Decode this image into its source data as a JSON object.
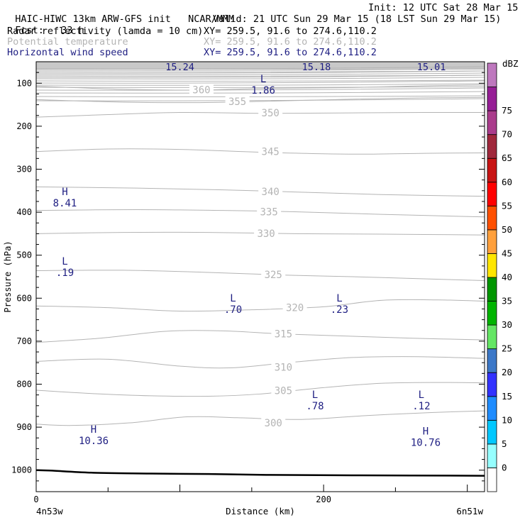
{
  "header": {
    "model": "HAIC-HIWC 13km ARW-GFS init",
    "org": "NCAR/MMM",
    "init": "Init: 12 UTC Sat 28 Mar 15",
    "fcst_label": "Fcst:",
    "fcst_value": "33 h",
    "valid": "Valid: 21 UTC Sun 29 Mar 15 (18 LST Sun 29 Mar 15)",
    "fields": [
      {
        "name": "Radar reflectivity (lamda = 10 cm)",
        "xy": "XY= 259.5, 91.6 to 274.6,110.2",
        "color": "#000000"
      },
      {
        "name": "Potential temperature",
        "xy": "XY= 259.5, 91.6 to 274.6,110.2",
        "color": "#b4b4b4"
      },
      {
        "name": "Horizontal wind speed",
        "xy": "XY= 259.5, 91.6 to 274.6,110.2",
        "color": "#1e1e82"
      }
    ]
  },
  "chart_data": {
    "type": "line",
    "title": "",
    "xlabel": "Distance (km)",
    "ylabel": "Pressure (hPa)",
    "x_tick_labels": [
      "0",
      "200"
    ],
    "x_end_labels": [
      "4n53w",
      "6n51w"
    ],
    "xlim": [
      0,
      312
    ],
    "y_tick_labels": [
      "100",
      "200",
      "300",
      "400",
      "500",
      "600",
      "700",
      "800",
      "900",
      "1000"
    ],
    "y_tick_values": [
      100,
      200,
      300,
      400,
      500,
      600,
      700,
      800,
      900,
      1000
    ],
    "ylim": [
      50,
      1050
    ],
    "theta_contours": [
      {
        "label": "300",
        "label_at": [
          165,
          890
        ],
        "points": [
          [
            0,
            893
          ],
          [
            25,
            896
          ],
          [
            65,
            890
          ],
          [
            105,
            876
          ],
          [
            140,
            878
          ],
          [
            185,
            882
          ],
          [
            230,
            873
          ],
          [
            275,
            866
          ],
          [
            312,
            862
          ]
        ]
      },
      {
        "label": "305",
        "label_at": [
          172,
          815
        ],
        "points": [
          [
            0,
            814
          ],
          [
            40,
            822
          ],
          [
            80,
            827
          ],
          [
            120,
            828
          ],
          [
            155,
            823
          ],
          [
            200,
            808
          ],
          [
            240,
            798
          ],
          [
            280,
            796
          ],
          [
            312,
            797
          ]
        ]
      },
      {
        "label": "310",
        "label_at": [
          172,
          760
        ],
        "points": [
          [
            0,
            747
          ],
          [
            50,
            742
          ],
          [
            100,
            758
          ],
          [
            135,
            762
          ],
          [
            175,
            750
          ],
          [
            220,
            738
          ],
          [
            265,
            736
          ],
          [
            312,
            740
          ]
        ]
      },
      {
        "label": "315",
        "label_at": [
          172,
          683
        ],
        "points": [
          [
            0,
            703
          ],
          [
            45,
            693
          ],
          [
            90,
            677
          ],
          [
            130,
            676
          ],
          [
            170,
            683
          ],
          [
            215,
            688
          ],
          [
            260,
            693
          ],
          [
            312,
            697
          ]
        ]
      },
      {
        "label": "320",
        "label_at": [
          180,
          622
        ],
        "points": [
          [
            0,
            618
          ],
          [
            50,
            622
          ],
          [
            100,
            630
          ],
          [
            150,
            627
          ],
          [
            200,
            620
          ],
          [
            240,
            605
          ],
          [
            280,
            604
          ],
          [
            312,
            607
          ]
        ]
      },
      {
        "label": "325",
        "label_at": [
          165,
          545
        ],
        "points": [
          [
            0,
            536
          ],
          [
            60,
            535
          ],
          [
            120,
            540
          ],
          [
            170,
            546
          ],
          [
            220,
            550
          ],
          [
            270,
            555
          ],
          [
            312,
            559
          ]
        ]
      },
      {
        "label": "330",
        "label_at": [
          160,
          449
        ],
        "points": [
          [
            0,
            450
          ],
          [
            60,
            447
          ],
          [
            120,
            447
          ],
          [
            180,
            450
          ],
          [
            240,
            451
          ],
          [
            312,
            453
          ]
        ]
      },
      {
        "label": "335",
        "label_at": [
          162,
          399
        ],
        "points": [
          [
            0,
            396
          ],
          [
            70,
            394
          ],
          [
            130,
            396
          ],
          [
            180,
            399
          ],
          [
            240,
            405
          ],
          [
            312,
            411
          ]
        ]
      },
      {
        "label": "340",
        "label_at": [
          163,
          352
        ],
        "points": [
          [
            0,
            341
          ],
          [
            70,
            344
          ],
          [
            130,
            348
          ],
          [
            180,
            353
          ],
          [
            240,
            359
          ],
          [
            312,
            363
          ]
        ]
      },
      {
        "label": "345",
        "label_at": [
          163,
          259
        ],
        "points": [
          [
            0,
            259
          ],
          [
            50,
            253
          ],
          [
            100,
            254
          ],
          [
            160,
            261
          ],
          [
            220,
            265
          ],
          [
            270,
            263
          ],
          [
            312,
            262
          ]
        ]
      },
      {
        "label": "350",
        "label_at": [
          163,
          169
        ],
        "points": [
          [
            0,
            179
          ],
          [
            50,
            173
          ],
          [
            100,
            168
          ],
          [
            160,
            170
          ],
          [
            220,
            169
          ],
          [
            270,
            168
          ],
          [
            312,
            168
          ]
        ]
      },
      {
        "label": "355",
        "label_at": [
          140,
          142
        ],
        "points": [
          [
            0,
            138
          ],
          [
            60,
            144
          ],
          [
            110,
            145
          ],
          [
            160,
            142
          ],
          [
            220,
            137
          ],
          [
            270,
            134
          ],
          [
            312,
            133
          ]
        ]
      },
      {
        "label": "360",
        "label_at": [
          115,
          115
        ],
        "points": [
          [
            0,
            107
          ],
          [
            60,
            114
          ],
          [
            110,
            116
          ],
          [
            160,
            112
          ],
          [
            220,
            110
          ],
          [
            270,
            106
          ],
          [
            312,
            104
          ]
        ]
      }
    ],
    "wind_top_values": [
      {
        "label": "15.24",
        "x": 100
      },
      {
        "label": "15.18",
        "x": 195
      },
      {
        "label": "15.01",
        "x": 275
      }
    ],
    "wind_extrema": [
      {
        "type": "L",
        "value": "1.86",
        "x": 158,
        "p": 103
      },
      {
        "type": "H",
        "value": "8.41",
        "x": 20,
        "p": 365
      },
      {
        "type": "L",
        "value": ".19",
        "x": 20,
        "p": 527
      },
      {
        "type": "L",
        "value": ".70",
        "x": 137,
        "p": 613
      },
      {
        "type": "L",
        "value": ".23",
        "x": 211,
        "p": 613
      },
      {
        "type": "L",
        "value": ".78",
        "x": 194,
        "p": 837
      },
      {
        "type": "L",
        "value": ".12",
        "x": 268,
        "p": 837
      },
      {
        "type": "H",
        "value": "10.36",
        "x": 40,
        "p": 918
      },
      {
        "type": "H",
        "value": "10.76",
        "x": 271,
        "p": 922
      }
    ],
    "terrain_surface": [
      [
        0,
        1000
      ],
      [
        10,
        1001
      ],
      [
        40,
        1006
      ],
      [
        80,
        1008
      ],
      [
        120,
        1009
      ],
      [
        160,
        1011
      ],
      [
        220,
        1012
      ],
      [
        312,
        1013
      ]
    ],
    "colorbar": {
      "unit": "dBZ",
      "labels": [
        "0",
        "5",
        "10",
        "15",
        "20",
        "25",
        "30",
        "35",
        "40",
        "45",
        "50",
        "55",
        "60",
        "65",
        "70",
        "75"
      ],
      "colors": [
        "#ffffff",
        "#96ffff",
        "#00c8ff",
        "#1e8cff",
        "#3232ff",
        "#3c78c8",
        "#64e664",
        "#00b400",
        "#009600",
        "#ffe600",
        "#ffa03c",
        "#ff5000",
        "#ff0000",
        "#c81414",
        "#a0283c",
        "#aa3c8c",
        "#961e96",
        "#be78be"
      ]
    }
  }
}
